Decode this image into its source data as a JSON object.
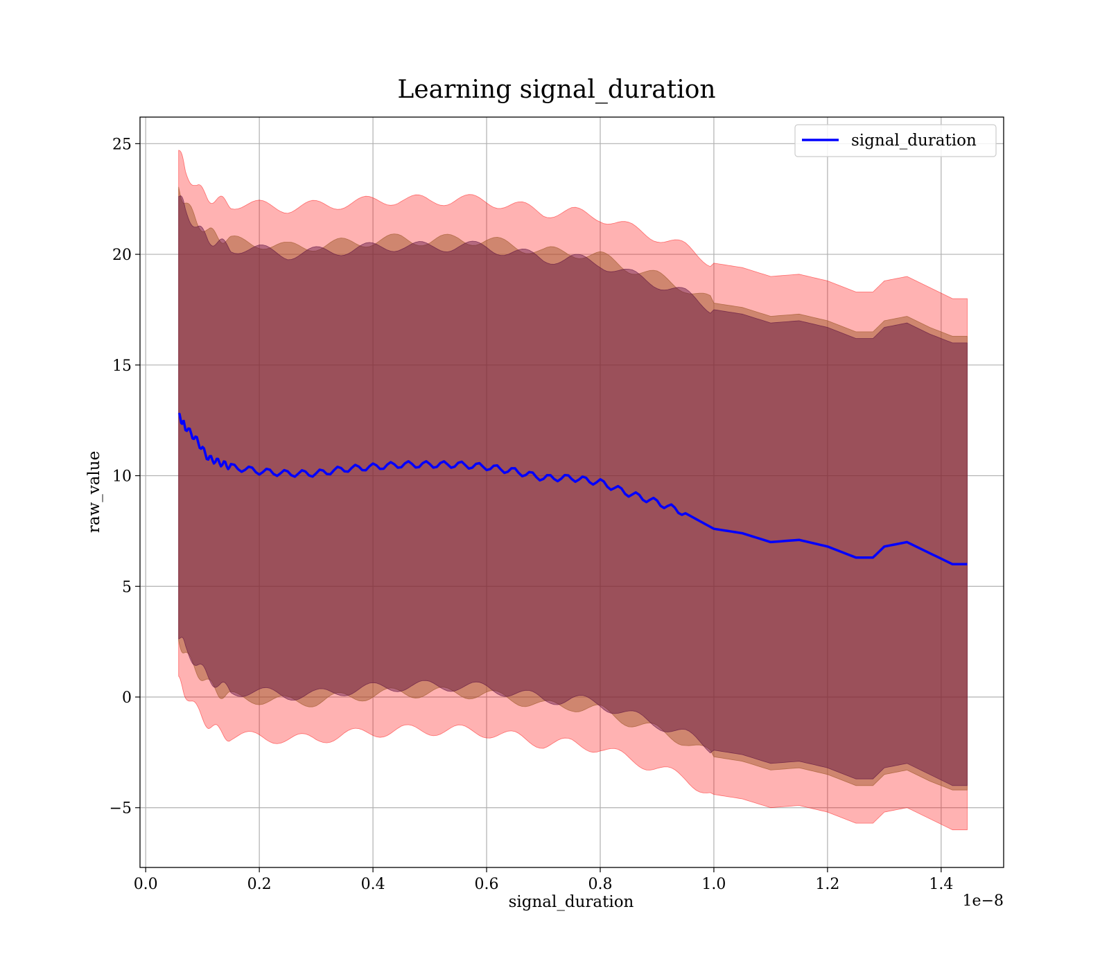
{
  "chart_data": {
    "type": "line",
    "title": "Learning signal_duration",
    "xlabel": "signal_duration",
    "ylabel": "raw_value",
    "x_offset_label": "1e−8",
    "xlim": [
      -0.01,
      1.51
    ],
    "ylim": [
      -7.7,
      26.2
    ],
    "x_ticks": [
      0.0,
      0.2,
      0.4,
      0.6,
      0.8,
      1.0,
      1.2,
      1.4
    ],
    "x_tick_labels": [
      "0.0",
      "0.2",
      "0.4",
      "0.6",
      "0.8",
      "1.0",
      "1.2",
      "1.4"
    ],
    "y_ticks": [
      -5,
      0,
      5,
      10,
      15,
      20,
      25
    ],
    "y_tick_labels": [
      "−5",
      "0",
      "5",
      "10",
      "15",
      "20",
      "25"
    ],
    "grid": true,
    "legend_position": "top-right",
    "x": [
      0.058,
      0.07,
      0.09,
      0.11,
      0.13,
      0.15,
      0.2,
      0.25,
      0.3,
      0.35,
      0.4,
      0.45,
      0.5,
      0.55,
      0.6,
      0.65,
      0.7,
      0.75,
      0.8,
      0.85,
      0.9,
      0.95,
      1.0,
      1.05,
      1.1,
      1.15,
      1.2,
      1.25,
      1.28,
      1.3,
      1.34,
      1.38,
      1.42,
      1.446
    ],
    "series": [
      {
        "name": "signal_duration",
        "color": "#0000ff",
        "values": [
          12.7,
          12.2,
          11.6,
          10.8,
          10.6,
          10.4,
          10.2,
          10.1,
          10.1,
          10.3,
          10.4,
          10.5,
          10.5,
          10.5,
          10.4,
          10.2,
          9.9,
          9.9,
          9.7,
          9.2,
          8.8,
          8.3,
          7.6,
          7.4,
          7.0,
          7.1,
          6.8,
          6.3,
          6.3,
          6.8,
          7.0,
          6.5,
          6.0,
          6.0
        ]
      }
    ],
    "bands": [
      {
        "color": "#ff0000",
        "opacity": 0.3,
        "upper": [
          24.7,
          23.8,
          23.0,
          22.6,
          22.4,
          22.3,
          22.2,
          22.1,
          22.2,
          22.3,
          22.4,
          22.5,
          22.4,
          22.5,
          22.4,
          22.2,
          21.9,
          21.9,
          21.7,
          21.2,
          20.8,
          20.3,
          19.6,
          19.4,
          19.0,
          19.1,
          18.8,
          18.3,
          18.3,
          18.8,
          19.0,
          18.5,
          18.0,
          18.0
        ],
        "lower": [
          0.7,
          0.2,
          -0.6,
          -1.2,
          -1.6,
          -1.8,
          -1.8,
          -1.9,
          -1.9,
          -1.7,
          -1.6,
          -1.5,
          -1.5,
          -1.5,
          -1.6,
          -1.8,
          -2.1,
          -2.1,
          -2.3,
          -2.8,
          -3.2,
          -3.7,
          -4.4,
          -4.6,
          -5.0,
          -4.9,
          -5.2,
          -5.7,
          -5.7,
          -5.2,
          -5.0,
          -5.5,
          -6.0,
          -6.0
        ]
      },
      {
        "color": "#a05a2c",
        "opacity": 0.5,
        "upper": [
          23.0,
          22.3,
          21.5,
          21.0,
          20.8,
          20.6,
          20.5,
          20.3,
          20.4,
          20.5,
          20.6,
          20.7,
          20.6,
          20.7,
          20.6,
          20.4,
          20.1,
          20.1,
          19.9,
          19.4,
          19.0,
          18.5,
          17.8,
          17.6,
          17.2,
          17.3,
          17.0,
          16.5,
          16.5,
          17.0,
          17.2,
          16.7,
          16.3,
          16.3
        ],
        "lower": [
          2.6,
          1.9,
          1.2,
          0.6,
          0.2,
          0.0,
          -0.1,
          -0.2,
          -0.2,
          0.0,
          0.1,
          0.2,
          0.2,
          0.2,
          0.1,
          -0.1,
          -0.4,
          -0.4,
          -0.6,
          -1.1,
          -1.5,
          -2.0,
          -2.7,
          -2.9,
          -3.3,
          -3.2,
          -3.5,
          -4.0,
          -4.0,
          -3.5,
          -3.3,
          -3.8,
          -4.2,
          -4.2
        ]
      },
      {
        "color": "#5a1040",
        "opacity": 0.45,
        "upper": [
          22.7,
          22.0,
          21.2,
          20.7,
          20.5,
          20.3,
          20.2,
          20.0,
          20.1,
          20.2,
          20.3,
          20.4,
          20.3,
          20.4,
          20.3,
          20.1,
          19.8,
          19.8,
          19.6,
          19.1,
          18.7,
          18.2,
          17.5,
          17.3,
          16.9,
          17.0,
          16.7,
          16.2,
          16.2,
          16.7,
          16.9,
          16.4,
          16.0,
          16.0
        ],
        "lower": [
          2.8,
          2.2,
          1.5,
          0.9,
          0.5,
          0.3,
          0.2,
          0.1,
          0.1,
          0.3,
          0.4,
          0.5,
          0.5,
          0.5,
          0.4,
          0.2,
          -0.1,
          -0.1,
          -0.3,
          -0.8,
          -1.2,
          -1.7,
          -2.4,
          -2.6,
          -3.0,
          -2.9,
          -3.2,
          -3.7,
          -3.7,
          -3.2,
          -3.0,
          -3.5,
          -4.0,
          -4.0
        ]
      }
    ]
  }
}
